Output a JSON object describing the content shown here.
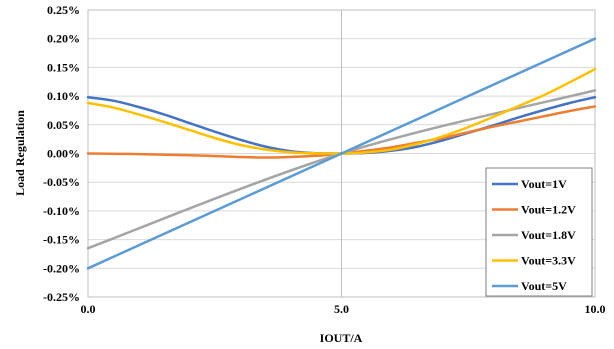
{
  "chart_data": {
    "type": "line",
    "title": "",
    "xlabel": "IOUT/A",
    "ylabel": "Load Regulation",
    "xlim": [
      0,
      10
    ],
    "ylim": [
      -0.25,
      0.25
    ],
    "x_ticks": [
      "0.0",
      "5.0",
      "10.0"
    ],
    "y_ticks": [
      "0.25%",
      "0.20%",
      "0.15%",
      "0.10%",
      "0.05%",
      "0.00%",
      "-0.05%",
      "-0.10%",
      "-0.15%",
      "-0.20%",
      "-0.25%"
    ],
    "grid": "major gridlines at y ticks and x = 5.0",
    "legend_position": "bottom-right",
    "series": [
      {
        "name": "Vout=1V",
        "color": "#4472C4",
        "x": [
          0,
          0.5,
          1,
          1.5,
          2,
          2.5,
          3,
          3.5,
          4,
          4.5,
          5,
          5.5,
          6,
          6.5,
          7,
          7.5,
          8,
          8.5,
          9,
          9.5,
          10
        ],
        "y": [
          0.098,
          0.092,
          0.081,
          0.068,
          0.053,
          0.038,
          0.024,
          0.012,
          0.004,
          0.0005,
          0,
          0.001,
          0.005,
          0.012,
          0.023,
          0.036,
          0.049,
          0.063,
          0.076,
          0.088,
          0.098
        ]
      },
      {
        "name": "Vout=1.2V",
        "color": "#ED7D31",
        "x": [
          0,
          1,
          2,
          3,
          3.5,
          4,
          4.5,
          5,
          5.5,
          6,
          6.5,
          7,
          7.5,
          8,
          8.5,
          9,
          9.5,
          10
        ],
        "y": [
          0,
          -0.001,
          -0.003,
          -0.006,
          -0.007,
          -0.006,
          -0.004,
          0,
          0.005,
          0.011,
          0.019,
          0.027,
          0.037,
          0.047,
          0.056,
          0.065,
          0.074,
          0.082
        ]
      },
      {
        "name": "Vout=1.8V",
        "color": "#A5A5A5",
        "x": [
          0,
          5,
          10
        ],
        "y": [
          -0.165,
          0,
          0.11
        ]
      },
      {
        "name": "Vout=3.3V",
        "color": "#FFC000",
        "x": [
          0,
          0.5,
          1,
          1.5,
          2,
          2.5,
          3,
          3.5,
          4,
          4.5,
          5,
          5.5,
          6,
          6.5,
          7,
          7.5,
          8,
          8.5,
          9,
          9.5,
          10
        ],
        "y": [
          0.088,
          0.08,
          0.068,
          0.055,
          0.041,
          0.027,
          0.015,
          0.007,
          0.002,
          0.0003,
          0,
          0.002,
          0.007,
          0.017,
          0.03,
          0.046,
          0.064,
          0.083,
          0.102,
          0.124,
          0.147
        ]
      },
      {
        "name": "Vout=5V",
        "color": "#5B9BD5",
        "x": [
          0,
          5,
          10
        ],
        "y": [
          -0.2,
          0,
          0.2
        ]
      }
    ]
  }
}
